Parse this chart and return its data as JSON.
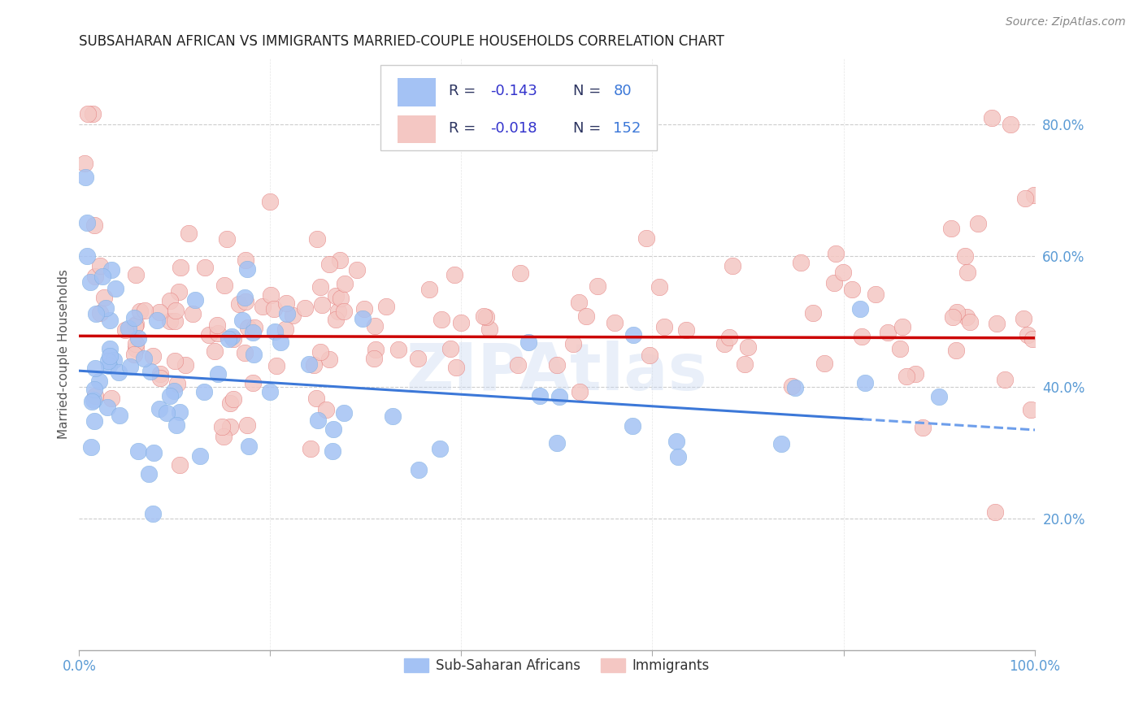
{
  "title": "SUBSAHARAN AFRICAN VS IMMIGRANTS MARRIED-COUPLE HOUSEHOLDS CORRELATION CHART",
  "source": "Source: ZipAtlas.com",
  "ylabel": "Married-couple Households",
  "xlim": [
    0.0,
    1.0
  ],
  "ylim": [
    0.0,
    0.9
  ],
  "blue_color": "#a4c2f4",
  "blue_color_edge": "#6fa8dc",
  "pink_color": "#f4c7c3",
  "pink_color_edge": "#e06666",
  "blue_line_color": "#3c78d8",
  "pink_line_color": "#cc0000",
  "blue_dash_color": "#6d9eeb",
  "r_blue": -0.143,
  "n_blue": 80,
  "r_pink": -0.018,
  "n_pink": 152,
  "blue_intercept": 0.425,
  "blue_slope": -0.09,
  "pink_intercept": 0.478,
  "pink_slope": -0.003,
  "watermark": "ZIPAtlas",
  "background_color": "#ffffff",
  "grid_color": "#cccccc",
  "legend_text_color": "#3c4a6b",
  "legend_r_color": "#3333cc",
  "legend_n_color": "#3c78d8"
}
